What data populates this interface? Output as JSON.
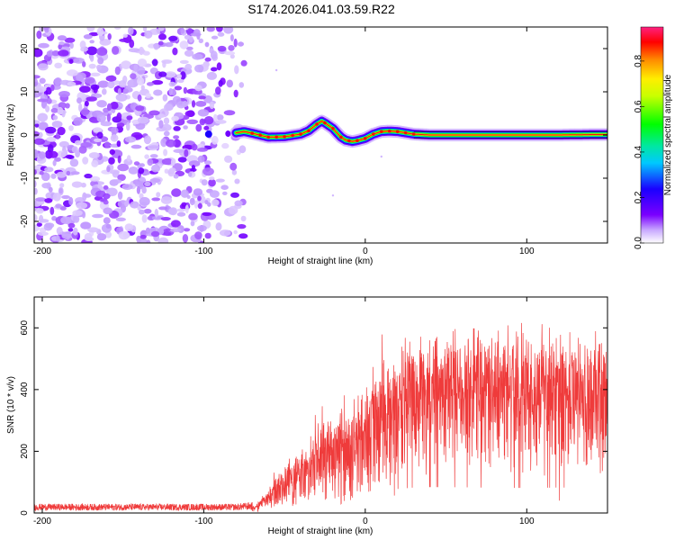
{
  "title": "S174.2026.041.03.59.R22",
  "chart_data": [
    {
      "type": "heatmap",
      "name": "spectrogram",
      "xlabel": "Height of straight line (km)",
      "ylabel": "Frequency (Hz)",
      "xlim": [
        -205,
        150
      ],
      "ylim": [
        -25,
        25
      ],
      "xticks": [
        -200,
        -100,
        0,
        100
      ],
      "yticks": [
        -20,
        -10,
        0,
        10,
        20
      ],
      "colorbar": {
        "label": "Normalized spectral amplitude",
        "range": [
          0,
          0.95
        ],
        "ticks": [
          0.0,
          0.2,
          0.4,
          0.6,
          0.8
        ]
      },
      "noise_region_x": [
        -205,
        -75
      ],
      "ridge": {
        "x": [
          -80,
          -75,
          -70,
          -60,
          -50,
          -40,
          -35,
          -30,
          -27,
          -25,
          -20,
          -15,
          -12,
          -8,
          -5,
          0,
          5,
          10,
          15,
          20,
          25,
          30,
          40,
          60,
          80,
          100,
          120,
          140,
          150
        ],
        "y": [
          0.5,
          0.8,
          0.4,
          -0.5,
          -0.4,
          0.2,
          1.0,
          2.5,
          3.2,
          2.8,
          1.5,
          -0.5,
          -1.2,
          -1.5,
          -1.3,
          -0.8,
          0.2,
          0.8,
          0.9,
          0.8,
          0.5,
          0.2,
          0.0,
          0.0,
          0.0,
          0.0,
          0.0,
          0.1,
          0.1
        ]
      }
    },
    {
      "type": "line",
      "name": "snr",
      "xlabel": "Height of straight line (km)",
      "ylabel": "SNR (10 * v/v)",
      "xlim": [
        -205,
        150
      ],
      "ylim": [
        0,
        700
      ],
      "xticks": [
        -200,
        -100,
        0,
        100
      ],
      "yticks": [
        0,
        200,
        400,
        600
      ],
      "color": "#ef3b3b",
      "envelope": {
        "x": [
          -205,
          -80,
          -68,
          -60,
          -50,
          -40,
          -30,
          -20,
          -10,
          0,
          10,
          20,
          30,
          40,
          60,
          80,
          100,
          120,
          140,
          150
        ],
        "y": [
          20,
          20,
          25,
          80,
          150,
          200,
          260,
          310,
          360,
          400,
          460,
          520,
          550,
          560,
          555,
          545,
          540,
          550,
          540,
          540
        ]
      }
    }
  ]
}
